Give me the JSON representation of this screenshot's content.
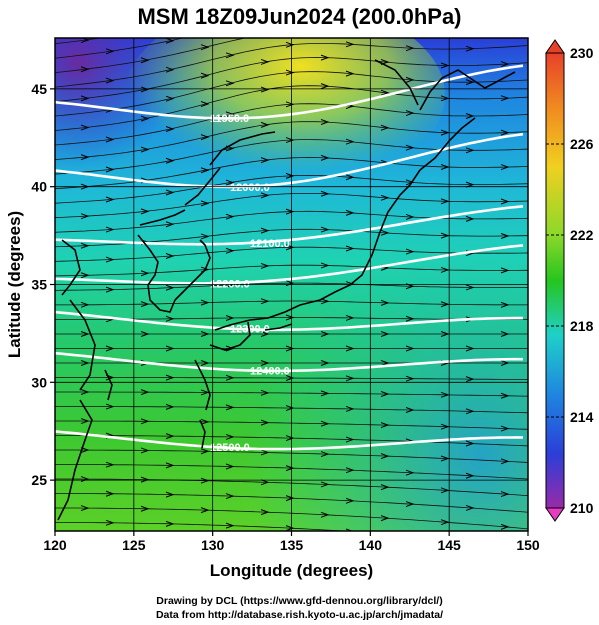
{
  "title": "MSM 18Z09Jun2024 (200.0hPa)",
  "x_axis": {
    "label": "Longitude (degrees)",
    "ticks": [
      "120",
      "125",
      "130",
      "135",
      "140",
      "145",
      "150"
    ],
    "range": [
      120,
      150
    ]
  },
  "y_axis": {
    "label": "Latitude  (degrees)",
    "ticks": [
      "25",
      "30",
      "35",
      "40",
      "45"
    ],
    "range": [
      22.4,
      47.6
    ]
  },
  "colorbar": {
    "ticks": [
      "230",
      "226",
      "222",
      "218",
      "214",
      "210"
    ],
    "range": [
      210,
      230
    ],
    "colors": {
      "top": "#e8412a",
      "mid_high": "#f0d020",
      "mid": "#26c51f",
      "mid_low": "#1fd0c8",
      "low": "#2a3fd8",
      "bottom": "#e83cc4"
    }
  },
  "contours": [
    {
      "label": "11950.0",
      "lat": 43.8
    },
    {
      "label": "12000.0",
      "lat": 40.3
    },
    {
      "label": "12100.0",
      "lat": 37.0
    },
    {
      "label": "12200.0",
      "lat": 35.0
    },
    {
      "label": "12300.0",
      "lat": 33.3
    },
    {
      "label": "12400.0",
      "lat": 31.2
    },
    {
      "label": "12500.0",
      "lat": 27.2
    }
  ],
  "credits": {
    "line1": "Drawing by DCL (https://www.gfd-dennou.org/library/dcl/)",
    "line2": "Data from http://database.rish.kyoto-u.ac.jp/arch/jmadata/"
  }
}
